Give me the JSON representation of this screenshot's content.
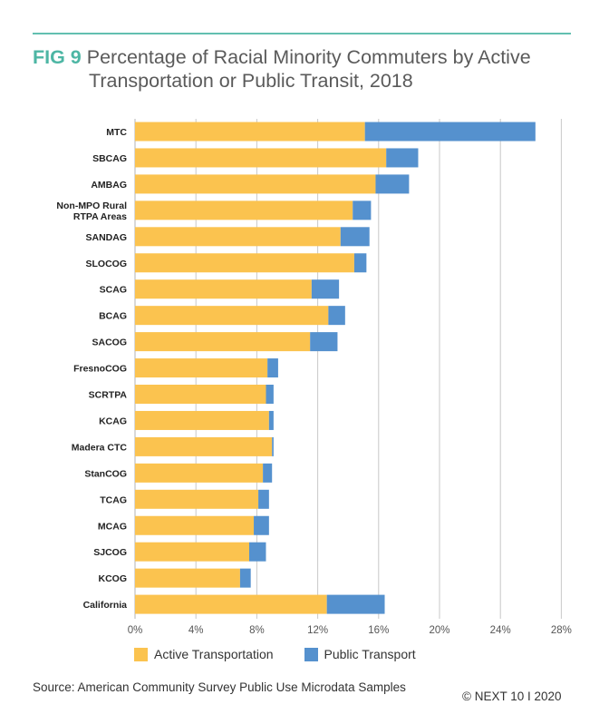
{
  "header": {
    "fig_label": "FIG 9",
    "title_line1": "Percentage of Racial Minority Commuters by Active",
    "title_line2": "Transportation or Public Transit, 2018"
  },
  "colors": {
    "active": "#fbc34f",
    "public": "#5591ce",
    "accent": "#4db6a4",
    "grid": "#c8c8c8"
  },
  "chart_data": {
    "type": "bar",
    "orientation": "horizontal",
    "stacked": true,
    "title": "Percentage of Racial Minority Commuters by Active Transportation or Public Transit, 2018",
    "xlabel": "",
    "ylabel": "",
    "xlim": [
      0,
      28
    ],
    "xticks": [
      "0%",
      "4%",
      "8%",
      "12%",
      "16%",
      "20%",
      "24%",
      "28%"
    ],
    "xtick_values": [
      0,
      4,
      8,
      12,
      16,
      20,
      24,
      28
    ],
    "grid": true,
    "legend_position": "bottom",
    "categories": [
      "MTC",
      "SBCAG",
      "AMBAG",
      "Non-MPO Rural RTPA Areas",
      "SANDAG",
      "SLOCOG",
      "SCAG",
      "BCAG",
      "SACOG",
      "FresnoCOG",
      "SCRTPA",
      "KCAG",
      "Madera CTC",
      "StanCOG",
      "TCAG",
      "MCAG",
      "SJCOG",
      "KCOG",
      "California"
    ],
    "category_lines": [
      [
        "MTC"
      ],
      [
        "SBCAG"
      ],
      [
        "AMBAG"
      ],
      [
        "Non-MPO Rural",
        "RTPA Areas"
      ],
      [
        "SANDAG"
      ],
      [
        "SLOCOG"
      ],
      [
        "SCAG"
      ],
      [
        "BCAG"
      ],
      [
        "SACOG"
      ],
      [
        "FresnoCOG"
      ],
      [
        "SCRTPA"
      ],
      [
        "KCAG"
      ],
      [
        "Madera CTC"
      ],
      [
        "StanCOG"
      ],
      [
        "TCAG"
      ],
      [
        "MCAG"
      ],
      [
        "SJCOG"
      ],
      [
        "KCOG"
      ],
      [
        "California"
      ]
    ],
    "series": [
      {
        "name": "Active Transportation",
        "values": [
          15.1,
          16.5,
          15.8,
          14.3,
          13.5,
          14.4,
          11.6,
          12.7,
          11.5,
          8.7,
          8.6,
          8.8,
          9.0,
          8.4,
          8.1,
          7.8,
          7.5,
          6.9,
          12.6
        ]
      },
      {
        "name": "Public Transport",
        "values": [
          11.2,
          2.1,
          2.2,
          1.2,
          1.9,
          0.8,
          1.8,
          1.1,
          1.8,
          0.7,
          0.5,
          0.3,
          0.1,
          0.6,
          0.7,
          1.0,
          1.1,
          0.7,
          3.8
        ]
      }
    ]
  },
  "legend": {
    "active_label": "Active Transportation",
    "public_label": "Public Transport"
  },
  "footer": {
    "source": "Source: American Community Survey Public Use Microdata Samples",
    "copyright": "© NEXT 10 I 2020"
  }
}
